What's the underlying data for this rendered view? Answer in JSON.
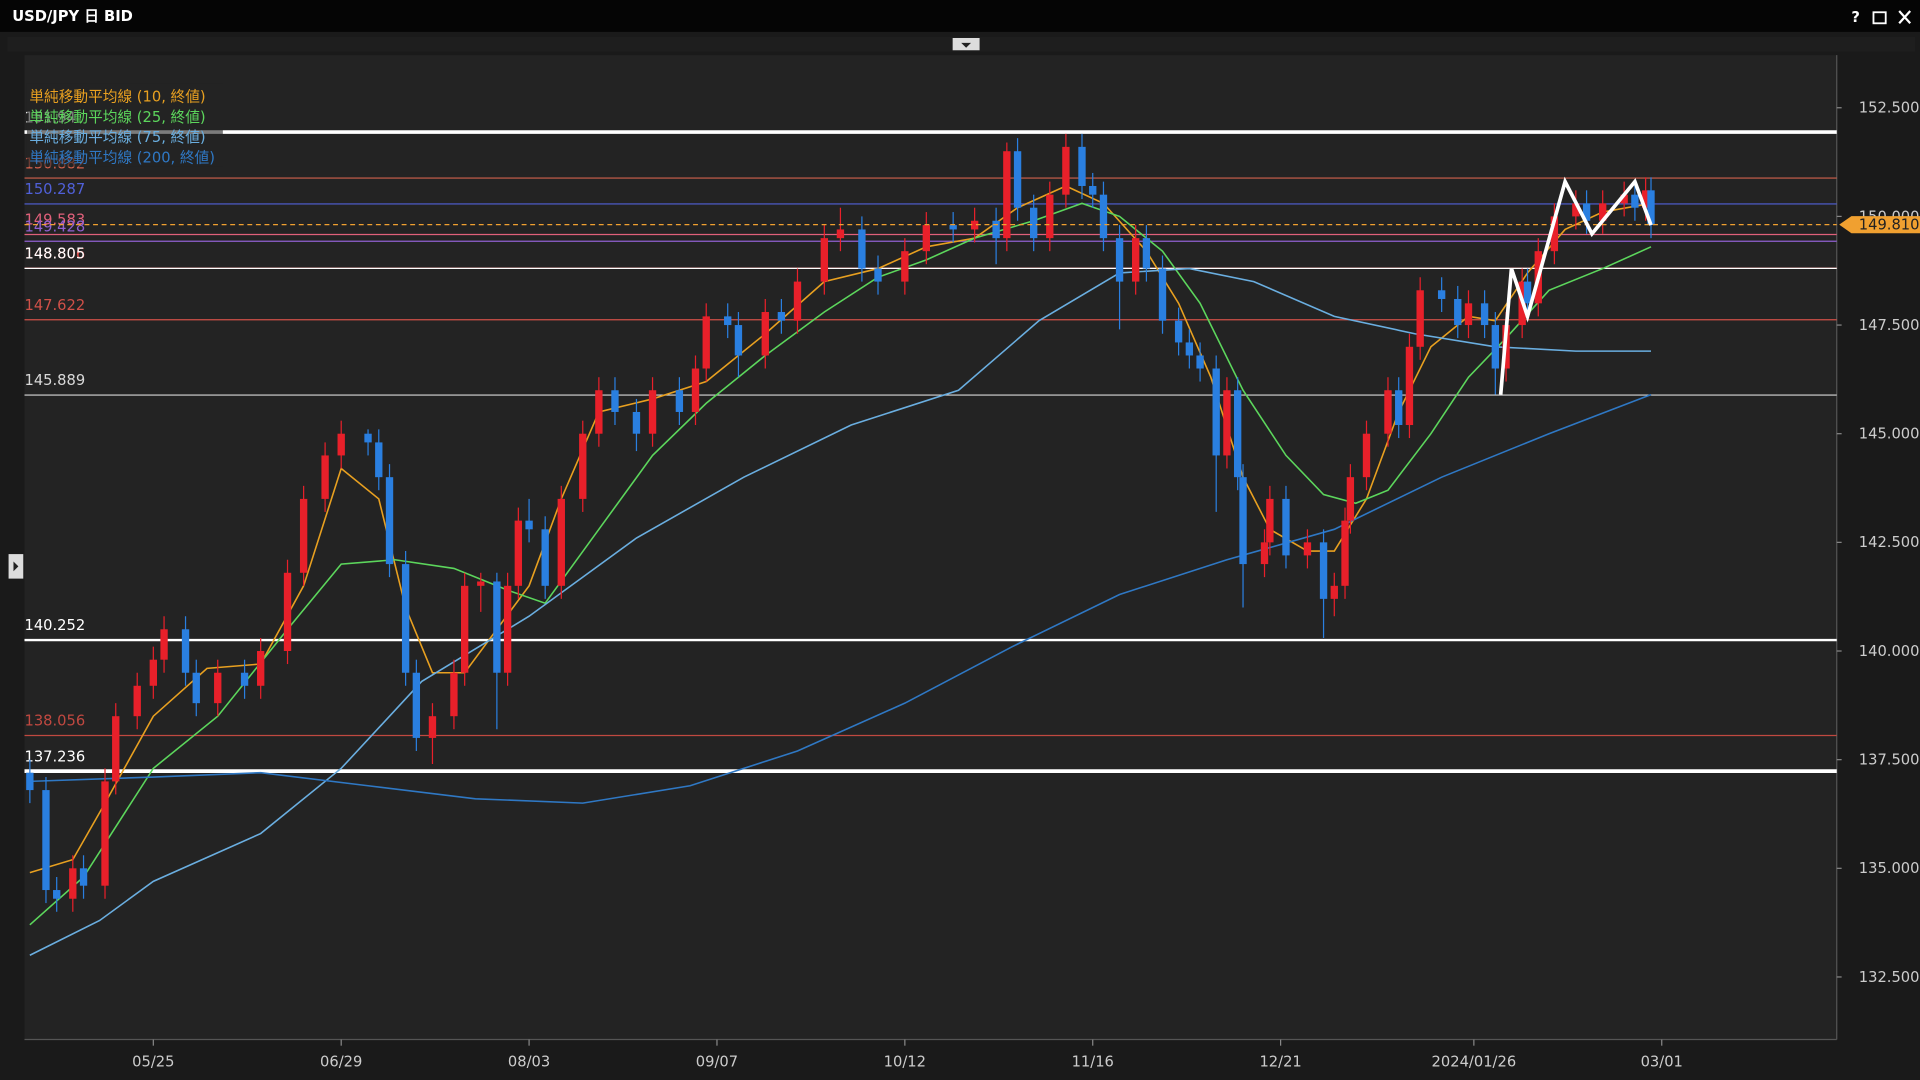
{
  "window": {
    "help": "?"
  },
  "chart_data": {
    "type": "candlestick",
    "title": "USD/JPY 日 BID",
    "up_color": "#e8202a",
    "down_color": "#2a7fe0",
    "xlim": [
      -24,
      313.6
    ],
    "ylim": [
      131.06,
      153.71
    ],
    "xticks": [
      {
        "value": 0,
        "label": "05/25"
      },
      {
        "value": 35,
        "label": "06/29"
      },
      {
        "value": 70,
        "label": "08/03"
      },
      {
        "value": 105,
        "label": "09/07"
      },
      {
        "value": 140,
        "label": "10/12"
      },
      {
        "value": 175,
        "label": "11/16"
      },
      {
        "value": 210,
        "label": "12/21"
      },
      {
        "value": 246,
        "label": "2024/01/26"
      },
      {
        "value": 281,
        "label": "03/01"
      }
    ],
    "yticks": [
      {
        "value": 132.5,
        "label": "132.500"
      },
      {
        "value": 135,
        "label": "135.000"
      },
      {
        "value": 137.5,
        "label": "137.500"
      },
      {
        "value": 140,
        "label": "140.000"
      },
      {
        "value": 142.5,
        "label": "142.500"
      },
      {
        "value": 145,
        "label": "145.000"
      },
      {
        "value": 147.5,
        "label": "147.500"
      },
      {
        "value": 150,
        "label": "150.000"
      },
      {
        "value": 152.5,
        "label": "152.500"
      }
    ],
    "candles": [
      [
        -23,
        137.2,
        137.5,
        136.5,
        136.8
      ],
      [
        -20,
        136.8,
        137.1,
        134.2,
        134.5
      ],
      [
        -18,
        134.5,
        134.8,
        134.0,
        134.3
      ],
      [
        -15,
        134.3,
        135.3,
        134.0,
        135.0
      ],
      [
        -13,
        135.0,
        135.3,
        134.3,
        134.6
      ],
      [
        -9,
        134.6,
        137.3,
        134.3,
        137.0
      ],
      [
        -7,
        137.0,
        138.8,
        136.7,
        138.5
      ],
      [
        -3,
        138.5,
        139.5,
        138.2,
        139.2
      ],
      [
        0,
        139.2,
        140.1,
        138.9,
        139.8
      ],
      [
        2,
        139.8,
        140.8,
        139.5,
        140.5
      ],
      [
        6,
        140.5,
        140.8,
        139.2,
        139.5
      ],
      [
        8,
        139.5,
        139.8,
        138.5,
        138.8
      ],
      [
        12,
        138.8,
        139.8,
        138.5,
        139.5
      ],
      [
        17,
        139.5,
        139.8,
        138.9,
        139.2
      ],
      [
        20,
        139.2,
        140.3,
        138.9,
        140.0
      ],
      [
        25,
        140.0,
        142.1,
        139.7,
        141.8
      ],
      [
        28,
        141.8,
        143.8,
        141.5,
        143.5
      ],
      [
        32,
        143.5,
        144.8,
        143.2,
        144.5
      ],
      [
        35,
        144.5,
        145.3,
        144.2,
        145.0
      ],
      [
        40,
        145.0,
        145.1,
        144.5,
        144.8
      ],
      [
        42,
        144.8,
        145.1,
        143.7,
        144.0
      ],
      [
        44,
        144.0,
        144.3,
        141.7,
        142.0
      ],
      [
        47,
        142.0,
        142.3,
        139.2,
        139.5
      ],
      [
        49,
        139.5,
        139.8,
        137.7,
        138.0
      ],
      [
        52,
        138.0,
        138.8,
        137.4,
        138.5
      ],
      [
        56,
        138.5,
        139.8,
        138.2,
        139.5
      ],
      [
        58,
        139.5,
        141.8,
        139.2,
        141.5
      ],
      [
        61,
        141.5,
        141.8,
        140.9,
        141.6
      ],
      [
        64,
        141.6,
        141.8,
        138.2,
        139.5
      ],
      [
        66,
        139.5,
        141.8,
        139.2,
        141.5
      ],
      [
        68,
        141.5,
        143.3,
        141.2,
        143.0
      ],
      [
        70,
        143.0,
        143.5,
        142.5,
        142.8
      ],
      [
        73,
        142.8,
        143.1,
        141.2,
        141.5
      ],
      [
        76,
        141.5,
        143.8,
        141.2,
        143.5
      ],
      [
        80,
        143.5,
        145.3,
        143.2,
        145.0
      ],
      [
        83,
        145.0,
        146.3,
        144.7,
        146.0
      ],
      [
        86,
        146.0,
        146.3,
        145.2,
        145.5
      ],
      [
        90,
        145.5,
        145.8,
        144.6,
        145.0
      ],
      [
        93,
        145.0,
        146.3,
        144.7,
        146.0
      ],
      [
        98,
        146.0,
        146.3,
        145.2,
        145.5
      ],
      [
        101,
        145.5,
        146.8,
        145.2,
        146.5
      ],
      [
        103,
        146.5,
        148.0,
        146.2,
        147.7
      ],
      [
        107,
        147.7,
        148.0,
        147.2,
        147.5
      ],
      [
        109,
        147.5,
        147.8,
        146.3,
        146.8
      ],
      [
        114,
        146.8,
        148.1,
        146.5,
        147.8
      ],
      [
        117,
        147.8,
        148.1,
        147.3,
        147.6
      ],
      [
        120,
        147.6,
        148.8,
        147.3,
        148.5
      ],
      [
        125,
        148.5,
        149.8,
        148.2,
        149.5
      ],
      [
        128,
        149.5,
        150.2,
        149.2,
        149.7
      ],
      [
        132,
        149.7,
        150.0,
        148.5,
        148.8
      ],
      [
        135,
        148.8,
        149.1,
        148.2,
        148.5
      ],
      [
        140,
        148.5,
        149.5,
        148.2,
        149.2
      ],
      [
        144,
        149.2,
        150.1,
        148.9,
        149.8
      ],
      [
        149,
        149.8,
        150.1,
        149.4,
        149.7
      ],
      [
        153,
        149.7,
        150.2,
        149.4,
        149.9
      ],
      [
        157,
        149.9,
        150.2,
        148.9,
        149.5
      ],
      [
        159,
        149.5,
        151.7,
        149.2,
        151.5
      ],
      [
        161,
        151.5,
        151.8,
        149.9,
        150.2
      ],
      [
        164,
        150.2,
        150.5,
        149.2,
        149.5
      ],
      [
        167,
        149.5,
        150.8,
        149.2,
        150.5
      ],
      [
        170,
        150.5,
        151.9,
        150.2,
        151.6
      ],
      [
        173,
        151.6,
        151.9,
        150.4,
        150.7
      ],
      [
        175,
        150.7,
        151.0,
        150.2,
        150.5
      ],
      [
        177,
        150.5,
        150.8,
        149.2,
        149.5
      ],
      [
        180,
        149.5,
        149.8,
        147.4,
        148.5
      ],
      [
        183,
        148.5,
        149.8,
        148.2,
        149.5
      ],
      [
        185,
        149.5,
        149.8,
        148.5,
        148.8
      ],
      [
        188,
        148.8,
        149.1,
        147.3,
        147.6
      ],
      [
        191,
        147.6,
        147.9,
        146.8,
        147.1
      ],
      [
        193,
        147.1,
        147.4,
        146.5,
        146.8
      ],
      [
        195,
        146.8,
        147.1,
        146.2,
        146.5
      ],
      [
        198,
        146.5,
        146.8,
        143.2,
        144.5
      ],
      [
        200,
        144.5,
        146.3,
        144.2,
        146.0
      ],
      [
        202,
        146.0,
        146.3,
        143.7,
        144.0
      ],
      [
        203,
        144.0,
        144.3,
        141.0,
        142.0
      ],
      [
        207,
        142.0,
        142.8,
        141.7,
        142.5
      ],
      [
        208,
        142.5,
        143.8,
        142.2,
        143.5
      ],
      [
        211,
        143.5,
        143.8,
        141.9,
        142.2
      ],
      [
        215,
        142.2,
        142.8,
        141.9,
        142.5
      ],
      [
        218,
        142.5,
        142.8,
        140.3,
        141.2
      ],
      [
        220,
        141.2,
        141.8,
        140.8,
        141.5
      ],
      [
        222,
        141.5,
        143.3,
        141.2,
        143.0
      ],
      [
        223,
        143.0,
        144.3,
        142.7,
        144.0
      ],
      [
        226,
        144.0,
        145.3,
        143.7,
        145.0
      ],
      [
        230,
        145.0,
        146.3,
        144.7,
        146.0
      ],
      [
        232,
        146.0,
        146.3,
        144.9,
        145.2
      ],
      [
        234,
        145.2,
        147.3,
        144.9,
        147.0
      ],
      [
        236,
        147.0,
        148.6,
        146.7,
        148.3
      ],
      [
        240,
        148.3,
        148.6,
        147.8,
        148.1
      ],
      [
        243,
        148.1,
        148.4,
        147.2,
        147.5
      ],
      [
        245,
        147.5,
        148.3,
        147.2,
        148.0
      ],
      [
        248,
        148.0,
        148.3,
        147.2,
        147.5
      ],
      [
        250,
        147.5,
        147.8,
        145.9,
        146.5
      ],
      [
        252,
        146.5,
        147.8,
        146.2,
        147.5
      ],
      [
        255,
        147.5,
        148.8,
        147.2,
        148.5
      ],
      [
        256,
        148.5,
        148.8,
        147.7,
        148.0
      ],
      [
        258,
        148.0,
        149.5,
        147.7,
        149.2
      ],
      [
        261,
        149.2,
        150.3,
        148.9,
        150.0
      ],
      [
        265,
        150.0,
        150.6,
        149.7,
        150.3
      ],
      [
        267,
        150.3,
        150.6,
        149.6,
        149.9
      ],
      [
        270,
        149.9,
        150.6,
        149.6,
        150.3
      ],
      [
        274,
        150.3,
        150.8,
        150.0,
        150.5
      ],
      [
        276,
        150.5,
        150.8,
        149.9,
        150.2
      ],
      [
        278,
        150.2,
        150.9,
        149.9,
        150.6
      ],
      [
        279,
        150.6,
        150.9,
        149.5,
        149.8
      ]
    ],
    "series": [
      {
        "name": "単純移動平均線 (10, 終値)",
        "color": "#e8a020",
        "x": [
          -23,
          -15,
          -9,
          0,
          10,
          20,
          28,
          35,
          42,
          47,
          52,
          58,
          64,
          70,
          76,
          83,
          93,
          103,
          114,
          125,
          135,
          144,
          153,
          161,
          170,
          177,
          185,
          191,
          197,
          203,
          208,
          215,
          220,
          226,
          232,
          238,
          245,
          250,
          256,
          263,
          270,
          279
        ],
        "values": [
          134.9,
          135.2,
          136.5,
          138.5,
          139.6,
          139.7,
          141.5,
          144.2,
          143.5,
          141,
          139.5,
          139.5,
          140.5,
          141.5,
          143.5,
          145.5,
          145.8,
          146.2,
          147.3,
          148.5,
          148.8,
          149.3,
          149.5,
          150.2,
          150.7,
          150.3,
          149.2,
          148,
          146.3,
          144,
          142.8,
          142.3,
          142.3,
          143.5,
          145.5,
          147,
          147.7,
          147.6,
          148.7,
          149.7,
          150.1,
          150.3
        ]
      },
      {
        "name": "単純移動平均線 (25, 終値)",
        "color": "#5cd65c",
        "x": [
          -23,
          -13,
          0,
          12,
          25,
          35,
          45,
          56,
          66,
          73,
          83,
          93,
          103,
          114,
          125,
          135,
          144,
          153,
          164,
          173,
          180,
          188,
          195,
          203,
          211,
          218,
          224,
          230,
          238,
          245,
          252,
          260,
          270,
          279
        ],
        "values": [
          133.7,
          134.8,
          137.3,
          138.5,
          140.5,
          142,
          142.1,
          141.9,
          141.4,
          141.1,
          142.8,
          144.5,
          145.7,
          146.8,
          147.8,
          148.6,
          149,
          149.5,
          149.9,
          150.3,
          150,
          149.2,
          148,
          146,
          144.5,
          143.6,
          143.4,
          143.7,
          145,
          146.3,
          147.2,
          148.3,
          148.8,
          149.3
        ]
      },
      {
        "name": "単純移動平均線 (75, 終値)",
        "color": "#6aaee0",
        "x": [
          -23,
          -10,
          0,
          20,
          35,
          50,
          70,
          90,
          110,
          130,
          150,
          165,
          180,
          193,
          205,
          220,
          235,
          250,
          265,
          279
        ],
        "values": [
          133,
          133.8,
          134.7,
          135.8,
          137.3,
          139.3,
          140.8,
          142.6,
          144,
          145.2,
          146,
          147.6,
          148.7,
          148.8,
          148.5,
          147.7,
          147.3,
          147,
          146.9,
          146.9
        ]
      },
      {
        "name": "単純移動平均線 (200, 終値)",
        "color": "#2f78c4",
        "x": [
          -23,
          0,
          20,
          40,
          60,
          80,
          100,
          120,
          140,
          160,
          180,
          200,
          220,
          240,
          260,
          279
        ],
        "values": [
          137,
          137.1,
          137.2,
          136.9,
          136.6,
          136.5,
          136.9,
          137.7,
          138.8,
          140.1,
          141.3,
          142.1,
          142.8,
          144,
          145,
          145.9
        ]
      }
    ],
    "levels": [
      {
        "value": 151.94,
        "color": "#ffffff",
        "width": 3
      },
      {
        "value": 150.882,
        "color": "#d0604c",
        "width": 1
      },
      {
        "value": 150.287,
        "color": "#5060d8",
        "width": 1
      },
      {
        "value": 149.583,
        "color": "#e0607a",
        "width": 1
      },
      {
        "value": 149.428,
        "color": "#9060d0",
        "width": 1
      },
      {
        "value": 148.806,
        "color": "#e05050",
        "width": 1
      },
      {
        "value": 148.805,
        "color": "#ffffff",
        "width": 1
      },
      {
        "value": 147.622,
        "color": "#d05048",
        "width": 1
      },
      {
        "value": 145.889,
        "color": "#d8d8d8",
        "width": 1
      },
      {
        "value": 140.252,
        "color": "#ffffff",
        "width": 2
      },
      {
        "value": 138.056,
        "color": "#c04840",
        "width": 1
      },
      {
        "value": 137.236,
        "color": "#ffffff",
        "width": 3
      }
    ],
    "current_price": {
      "value": 149.81,
      "label": "149.810"
    },
    "current_color": "#f0a030",
    "annotation": {
      "color": "#ffffff",
      "x": [
        251,
        253,
        256,
        263,
        268,
        276,
        279
      ],
      "values": [
        145.9,
        148.8,
        147.7,
        150.8,
        149.6,
        150.8,
        149.8
      ]
    }
  }
}
